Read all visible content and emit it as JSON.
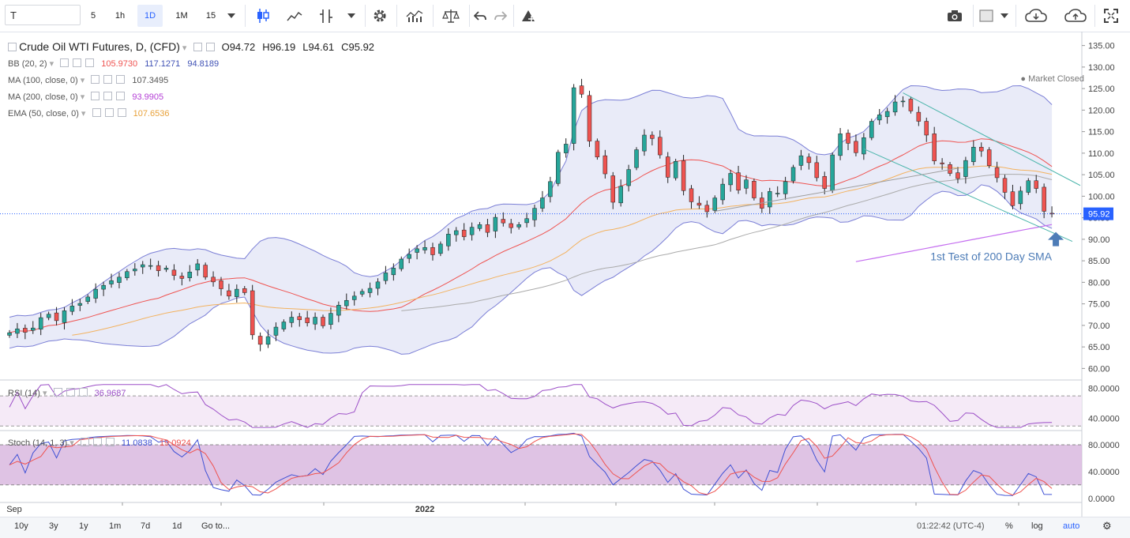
{
  "toolbar": {
    "symbol": "T",
    "intervals": [
      "5",
      "1h",
      "1D",
      "1M",
      "15"
    ],
    "active_interval": "1D",
    "icons": [
      "candles-icon",
      "line-chart-icon",
      "drawing-tool-icon",
      "dropdown-icon",
      "gear-icon",
      "indicators-icon",
      "compare-icon",
      "undo-icon",
      "redo-icon",
      "alert-icon",
      "camera-icon",
      "layout-icon",
      "layout-dropdown-icon",
      "cloud-load-icon",
      "cloud-save-icon",
      "fullscreen-icon"
    ]
  },
  "legend": {
    "title": "Crude Oil WTI Futures, D, (CFD)",
    "ohlc": {
      "o": "O94.72",
      "h": "H96.19",
      "l": "L94.61",
      "c": "C95.92"
    },
    "bb": {
      "label": "BB (20, 2)",
      "basis": "105.9730",
      "upper": "117.1271",
      "lower": "94.8189"
    },
    "ma100": {
      "label": "MA (100, close, 0)",
      "value": "107.3495"
    },
    "ma200": {
      "label": "MA (200, close, 0)",
      "value": "93.9905"
    },
    "ema50": {
      "label": "EMA (50, close, 0)",
      "value": "107.6536"
    },
    "rsi": {
      "label": "RSI (14)",
      "value": "36.9687"
    },
    "stoch": {
      "label": "Stoch (14, 1, 3)",
      "k": "11.0838",
      "d": "19.0924"
    },
    "status": "Market Closed"
  },
  "colors": {
    "up": "#26a69a",
    "down": "#ef5350",
    "bb_band": "#7b7fd6",
    "bb_fill": "#e2e4f6",
    "ma100": "#aaaaaa",
    "ma200": "#c56ff0",
    "ema50": "#f3b25f",
    "basis": "#ef5350",
    "rsi": "#9c4fc7",
    "stoch_k": "#3f51d5",
    "stoch_d": "#ef5350",
    "price_tag": "#2962ff",
    "annotation": "#4d7cb7"
  },
  "annotation": "1st Test of 200 Day SMA",
  "last_price": "95.92",
  "bottom": {
    "ranges": [
      "10y",
      "3y",
      "1y",
      "1m",
      "7d",
      "1d"
    ],
    "goto": "Go to...",
    "time": "01:22:42 (UTC-4)",
    "percent": "%",
    "log": "log",
    "auto": "auto"
  },
  "chart_data": {
    "type": "candlestick",
    "title": "Crude Oil WTI Futures, D, (CFD)",
    "x_tick_labels": [
      "Sep",
      "2022"
    ],
    "ylim": [
      57.5,
      137.5
    ],
    "y_ticks": [
      "60.00",
      "65.00",
      "70.00",
      "75.00",
      "80.00",
      "85.00",
      "90.00",
      "95.00",
      "100.00",
      "105.00",
      "110.00",
      "115.00",
      "120.00",
      "125.00",
      "130.00",
      "135.00"
    ],
    "candle_close": [
      68.3,
      69.2,
      68.4,
      69.4,
      71.8,
      72.6,
      71.1,
      73.4,
      74.5,
      75.1,
      76.6,
      78.4,
      79.3,
      80.4,
      81.2,
      82.5,
      83.1,
      84.1,
      83.9,
      82.7,
      83.3,
      81.6,
      80.9,
      82.4,
      84.3,
      81.2,
      80.1,
      78.5,
      76.8,
      78.4,
      77.6,
      67.8,
      65.6,
      67.4,
      69.6,
      70.8,
      71.9,
      71.3,
      70.6,
      71.9,
      69.9,
      72.8,
      74.7,
      75.8,
      76.8,
      77.9,
      78.6,
      80.1,
      82.2,
      83.3,
      85.4,
      86.5,
      87.8,
      88.1,
      86.4,
      88.9,
      91.2,
      92.0,
      90.6,
      92.8,
      93.4,
      91.6,
      95.1,
      93.8,
      92.7,
      93.4,
      94.8,
      97.2,
      99.6,
      103.4,
      110.2,
      112.1,
      125.2,
      123.7,
      112.8,
      109.1,
      105.2,
      98.6,
      102.3,
      106.2,
      110.8,
      114.2,
      113.4,
      109.6,
      104.4,
      108.1,
      101.3,
      98.7,
      97.9,
      96.4,
      99.6,
      102.8,
      105.3,
      101.4,
      103.8,
      99.6,
      97.2,
      101.1,
      100.7,
      103.4,
      106.7,
      109.4,
      107.8,
      104.3,
      101.8,
      109.6,
      114.5,
      112.3,
      110.1,
      113.6,
      117.4,
      118.9,
      119.7,
      121.9,
      122.1,
      119.8,
      117.4,
      114.2,
      108.2,
      107.5,
      105.3,
      104.1,
      108.3,
      111.4,
      110.5,
      107.1,
      104.3,
      100.9,
      97.8,
      101.2,
      103.6,
      101.8,
      96.5,
      95.92
    ],
    "annotation": "1st Test of 200 Day SMA",
    "rsi_ylim": [
      25,
      90
    ],
    "rsi_y_ticks": [
      "40.0000",
      "80.0000"
    ],
    "stoch_ylim": [
      -5,
      100
    ],
    "stoch_y_ticks": [
      "0.0000",
      "40.0000",
      "80.0000"
    ]
  }
}
